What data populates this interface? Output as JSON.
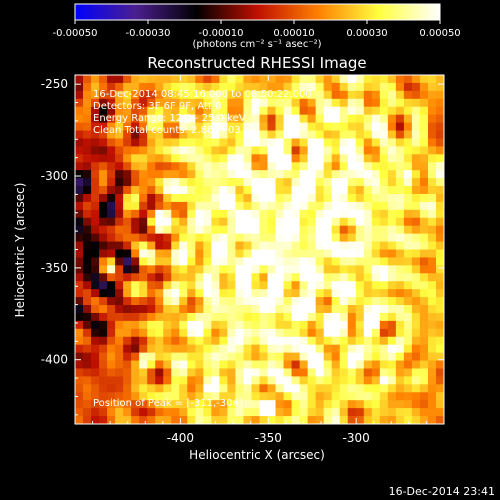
{
  "chart_data": {
    "type": "heatmap",
    "title": "Reconstructed RHESSI Image",
    "xlabel": "Heliocentric X (arcsec)",
    "ylabel": "Heliocentric Y (arcsec)",
    "xlim": [
      -460,
      -250
    ],
    "ylim": [
      -435,
      -245
    ],
    "x_ticks": [
      -400,
      -350,
      -300
    ],
    "y_ticks": [
      -250,
      -300,
      -350,
      -400
    ],
    "x_tick_labels": [
      "-400",
      "-350",
      "-300"
    ],
    "y_tick_labels": [
      "-250",
      "-300",
      "-350",
      "-400"
    ],
    "colorbar": {
      "min": -0.0005,
      "max": 0.0005,
      "ticks": [
        -0.0005,
        -0.0003,
        -0.0001,
        0.0001,
        0.0003,
        0.0005
      ],
      "tick_labels": [
        "-0.00050",
        "-0.00030",
        "-0.00010",
        "0.00010",
        "0.00030",
        "0.00050"
      ],
      "units_label": "(photons cm⁻² s⁻¹ asec⁻²)",
      "colormap": [
        "#0000ff",
        "#4b1f8f",
        "#000000",
        "#c01000",
        "#ff8000",
        "#ffff40",
        "#ffffff"
      ]
    },
    "peak": {
      "x": -311,
      "y": -304
    },
    "bright_spots": [
      {
        "x": -311,
        "y": -304,
        "v": 1.0
      },
      {
        "x": -350,
        "y": -425,
        "v": 0.95
      },
      {
        "x": -397,
        "y": -270,
        "v": 0.85
      },
      {
        "x": -412,
        "y": -325,
        "v": 0.8
      },
      {
        "x": -345,
        "y": -358,
        "v": 0.85
      },
      {
        "x": -293,
        "y": -383,
        "v": 0.8
      },
      {
        "x": -300,
        "y": -262,
        "v": 0.7
      },
      {
        "x": -340,
        "y": -293,
        "v": 0.7
      },
      {
        "x": -372,
        "y": -312,
        "v": 0.75
      },
      {
        "x": -270,
        "y": -300,
        "v": 0.7
      },
      {
        "x": -440,
        "y": -350,
        "v": 0.55
      },
      {
        "x": -380,
        "y": -415,
        "v": 0.65
      },
      {
        "x": -283,
        "y": -410,
        "v": 0.6
      },
      {
        "x": -420,
        "y": -400,
        "v": 0.55
      }
    ]
  },
  "annotations": {
    "time_range": "16-Dec-2014 08:45:16.000 to 08:50:22.000",
    "detectors": "Detectors: 3F 6F 9F, Att 0",
    "energy": "Energy Range: 12.0 - 25.0 keV",
    "clean": "Clean     Total counts: 2.86E+03",
    "peak_text": "Position of Peak = [-311,-304]"
  },
  "footer_timestamp": "16-Dec-2014 23:41"
}
